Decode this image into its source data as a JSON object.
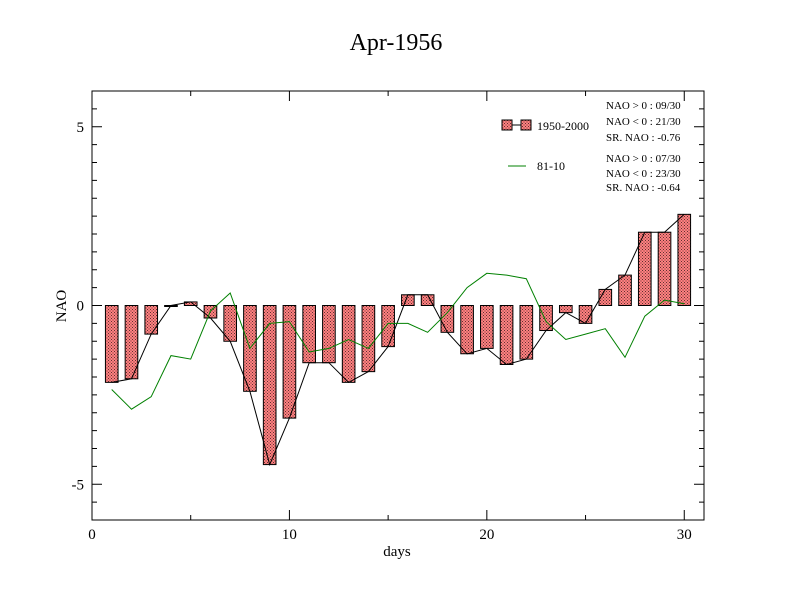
{
  "chart_data": {
    "type": "bar",
    "title": "Apr-1956",
    "xlabel": "days",
    "ylabel": "NAO",
    "xlim": [
      0,
      31
    ],
    "ylim": [
      -6,
      6
    ],
    "x_ticks": [
      0,
      10,
      20,
      30
    ],
    "y_ticks": [
      -5,
      0,
      5
    ],
    "x_tick_labels": [
      "0",
      "10",
      "20",
      "30"
    ],
    "y_tick_labels": [
      "-5",
      "0",
      "5"
    ],
    "grid": false,
    "legend_position": "top-right",
    "x": [
      1,
      2,
      3,
      4,
      5,
      6,
      7,
      8,
      9,
      10,
      11,
      12,
      13,
      14,
      15,
      16,
      17,
      18,
      19,
      20,
      21,
      22,
      23,
      24,
      25,
      26,
      27,
      28,
      29,
      30
    ],
    "series": [
      {
        "name": "1950-2000",
        "kind": "bar-with-line",
        "color": "#ff8080",
        "values": [
          -2.15,
          -2.05,
          -0.8,
          0.0,
          0.1,
          -0.35,
          -1.0,
          -2.4,
          -4.45,
          -3.15,
          -1.6,
          -1.6,
          -2.15,
          -1.85,
          -1.15,
          0.3,
          0.3,
          -0.75,
          -1.35,
          -1.2,
          -1.65,
          -1.5,
          -0.7,
          -0.2,
          -0.5,
          0.45,
          0.85,
          2.05,
          2.05,
          2.55
        ],
        "stats": [
          "NAO > 0 : 09/30",
          "NAO < 0 : 21/30",
          "SR. NAO : -0.76"
        ]
      },
      {
        "name": "81-10",
        "kind": "line",
        "color": "#008000",
        "values": [
          -2.35,
          -2.9,
          -2.55,
          -1.4,
          -1.5,
          -0.15,
          0.35,
          -1.2,
          -0.5,
          -0.45,
          -1.3,
          -1.2,
          -0.95,
          -1.2,
          -0.5,
          -0.5,
          -0.75,
          -0.2,
          0.5,
          0.9,
          0.85,
          0.75,
          -0.45,
          -0.95,
          -0.8,
          -0.65,
          -1.45,
          -0.3,
          0.15,
          0.05
        ],
        "stats": [
          "NAO > 0 : 07/30",
          "NAO < 0 : 23/30",
          "SR. NAO : -0.64"
        ]
      }
    ]
  }
}
